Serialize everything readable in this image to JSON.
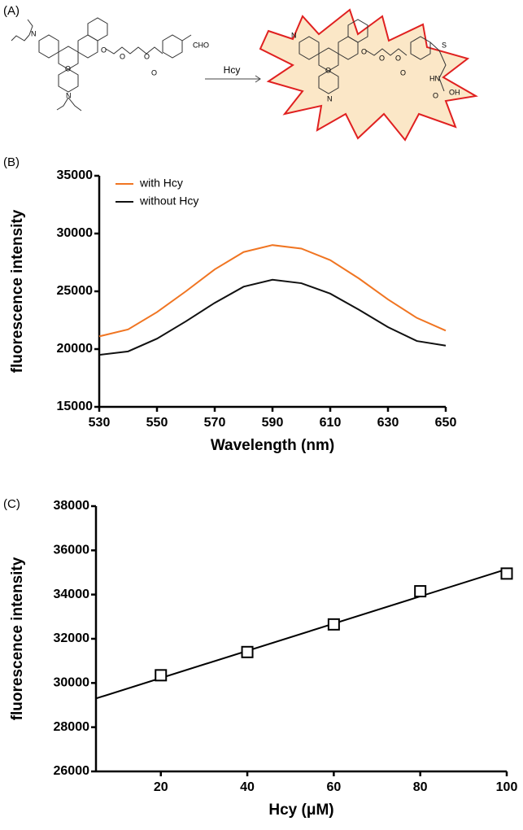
{
  "panel_labels": [
    "(A)",
    "(B)",
    "(C)"
  ],
  "scheme": {
    "reagent": "Hcy",
    "left_atoms": [
      "N",
      "N",
      "O",
      "O",
      "O",
      "O",
      "O",
      "CHO"
    ],
    "right_atoms": [
      "N",
      "N",
      "O",
      "O",
      "O",
      "O",
      "O",
      "S",
      "HN",
      "O",
      "OH"
    ]
  },
  "chart_data": [
    {
      "type": "line",
      "xlabel": "Wavelength (nm)",
      "ylabel": "fluorescence intensity",
      "x": [
        530,
        540,
        550,
        560,
        570,
        580,
        590,
        600,
        610,
        620,
        630,
        640,
        650
      ],
      "series": [
        {
          "name": "with Hcy",
          "color": "#f07522",
          "values": [
            21100,
            21700,
            23200,
            25000,
            26900,
            28400,
            29000,
            28700,
            27700,
            26100,
            24300,
            22700,
            21600
          ]
        },
        {
          "name": "without Hcy",
          "color": "#111111",
          "values": [
            19500,
            19800,
            20900,
            22400,
            24000,
            25400,
            26000,
            25700,
            24800,
            23400,
            21900,
            20700,
            20300
          ]
        }
      ],
      "xlim": [
        530,
        650
      ],
      "xticks": [
        530,
        550,
        570,
        590,
        610,
        630,
        650
      ],
      "ylim": [
        15000,
        35000
      ],
      "yticks": [
        15000,
        20000,
        25000,
        30000,
        35000
      ],
      "legend": "upper left"
    },
    {
      "type": "scatter",
      "xlabel": "Hcy (μM)",
      "ylabel": "fluorescence intensity",
      "x": [
        20,
        40,
        60,
        80,
        100
      ],
      "values": [
        30350,
        31400,
        32650,
        34150,
        34950
      ],
      "color": "#000000",
      "fit": {
        "x": [
          5,
          100
        ],
        "values": [
          29300,
          35150
        ]
      },
      "xlim": [
        5,
        100
      ],
      "xticks": [
        20,
        40,
        60,
        80,
        100
      ],
      "ylim": [
        26000,
        38000
      ],
      "yticks": [
        26000,
        28000,
        30000,
        32000,
        34000,
        36000,
        38000
      ]
    }
  ]
}
